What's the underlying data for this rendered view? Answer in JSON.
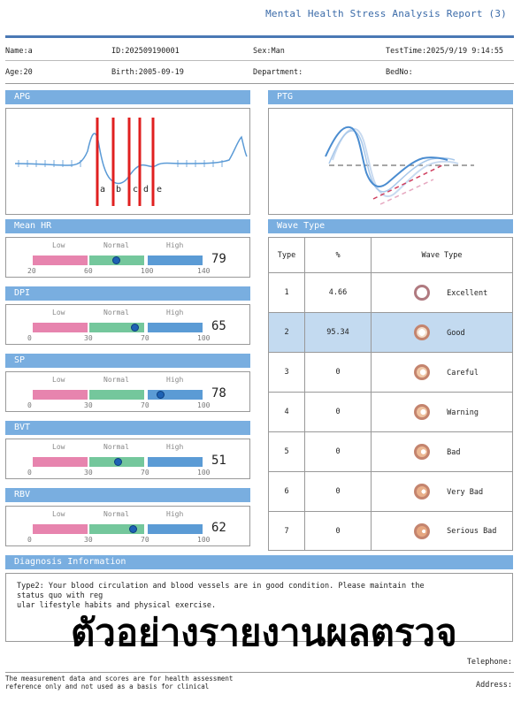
{
  "report_title": "Mental Health Stress Analysis Report (3)",
  "patient": {
    "name": "Name:a",
    "id": "ID:202509190001",
    "sex": "Sex:Man",
    "test_time": "TestTime:2025/9/19 9:14:55",
    "age": "Age:20",
    "birth": "Birth:2005-09-19",
    "department": "Department:",
    "bed_no": "BedNo:"
  },
  "apg": {
    "title": "APG",
    "labels": [
      "a",
      "b",
      "c",
      "d",
      "e"
    ],
    "marker_color": "#e02020",
    "wave_color": "#5a9ad6"
  },
  "ptg": {
    "title": "PTG"
  },
  "scales": [
    {
      "title": "Mean HR",
      "labels": [
        "Low",
        "Normal",
        "High"
      ],
      "ticks": [
        "20",
        "60",
        "100",
        "140"
      ],
      "value": "79",
      "position": 0.49
    },
    {
      "title": "DPI",
      "labels": [
        "Low",
        "Normal",
        "High"
      ],
      "ticks": [
        "0",
        "30",
        "70",
        "100"
      ],
      "value": "65",
      "position": 0.6
    },
    {
      "title": "SP",
      "labels": [
        "Low",
        "Normal",
        "High"
      ],
      "ticks": [
        "0",
        "30",
        "70",
        "100"
      ],
      "value": "78",
      "position": 0.75
    },
    {
      "title": "BVT",
      "labels": [
        "Low",
        "Normal",
        "High"
      ],
      "ticks": [
        "0",
        "30",
        "70",
        "100"
      ],
      "value": "51",
      "position": 0.5
    },
    {
      "title": "RBV",
      "labels": [
        "Low",
        "Normal",
        "High"
      ],
      "ticks": [
        "0",
        "30",
        "70",
        "100"
      ],
      "value": "62",
      "position": 0.59
    }
  ],
  "scale_colors": {
    "low": "#e784ae",
    "normal": "#74c79c",
    "high": "#5b9bd5"
  },
  "wave_type": {
    "title": "Wave Type",
    "headers": [
      "Type",
      "%",
      "Wave Type"
    ],
    "rows": [
      {
        "type": "1",
        "percent": "4.66",
        "name": "Excellent",
        "highlight": false
      },
      {
        "type": "2",
        "percent": "95.34",
        "name": "Good",
        "highlight": true
      },
      {
        "type": "3",
        "percent": "0",
        "name": "Careful",
        "highlight": false
      },
      {
        "type": "4",
        "percent": "0",
        "name": "Warning",
        "highlight": false
      },
      {
        "type": "5",
        "percent": "0",
        "name": "Bad",
        "highlight": false
      },
      {
        "type": "6",
        "percent": "0",
        "name": "Very Bad",
        "highlight": false
      },
      {
        "type": "7",
        "percent": "0",
        "name": "Serious Bad",
        "highlight": false
      }
    ]
  },
  "diagnosis": {
    "title": "Diagnosis Information",
    "line1": "Type2:  Your  blood  circulation  and  blood  vessels  are  in  good  condition.  Please  maintain  the",
    "line2": "status  quo  with  reg",
    "line3": "ular  lifestyle habits  and  physical  exercise."
  },
  "watermark": "ตัวอย่างรายงานผลตรวจ",
  "telephone": "Telephone:",
  "address": "Address:",
  "disclaimer1": "The  measurement  data  and  scores  are  for  health  assessment",
  "disclaimer2": "reference  only  and  not  used  as  a  basis  for  clinical"
}
